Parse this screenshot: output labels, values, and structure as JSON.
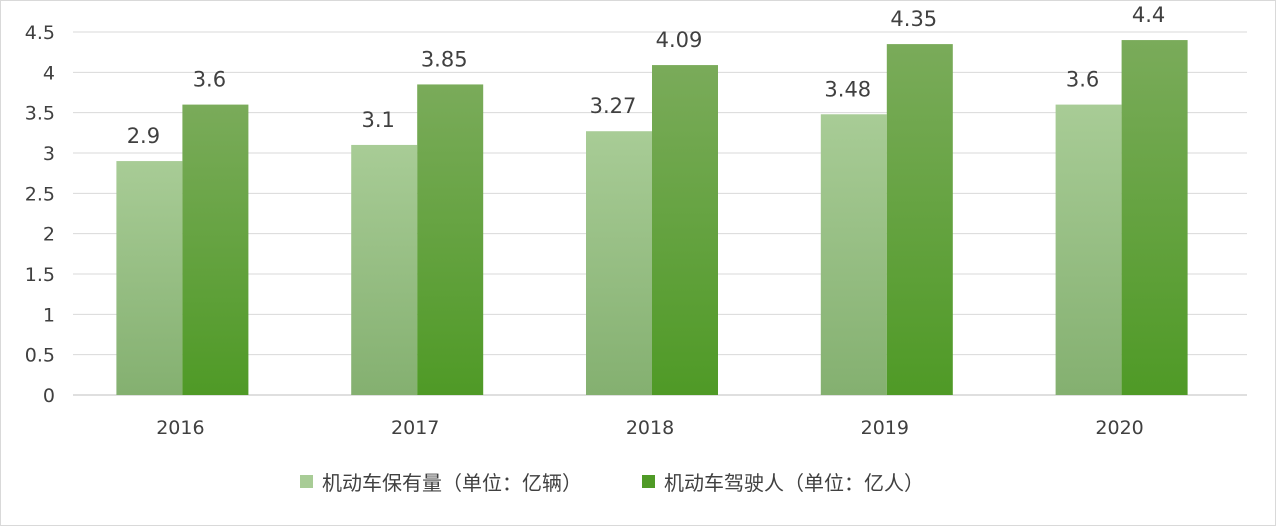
{
  "chart_data": {
    "type": "bar",
    "categories": [
      "2016",
      "2017",
      "2018",
      "2019",
      "2020"
    ],
    "series": [
      {
        "name": "机动车保有量（单位：亿辆）",
        "values": [
          2.9,
          3.1,
          3.27,
          3.48,
          3.6
        ],
        "color_top": "#a8cc96",
        "color_bottom": "#84b070"
      },
      {
        "name": "机动车驾驶人（单位：亿人）",
        "values": [
          3.6,
          3.85,
          4.09,
          4.35,
          4.4
        ],
        "color_top": "#7aab5a",
        "color_bottom": "#4f9a26"
      }
    ],
    "ylim": [
      0,
      4.5
    ],
    "yticks": [
      "0",
      "0.5",
      "1",
      "1.5",
      "2",
      "2.5",
      "3",
      "3.5",
      "4",
      "4.5"
    ],
    "grid": true,
    "legend_position": "bottom",
    "title": "",
    "xlabel": "",
    "ylabel": ""
  }
}
